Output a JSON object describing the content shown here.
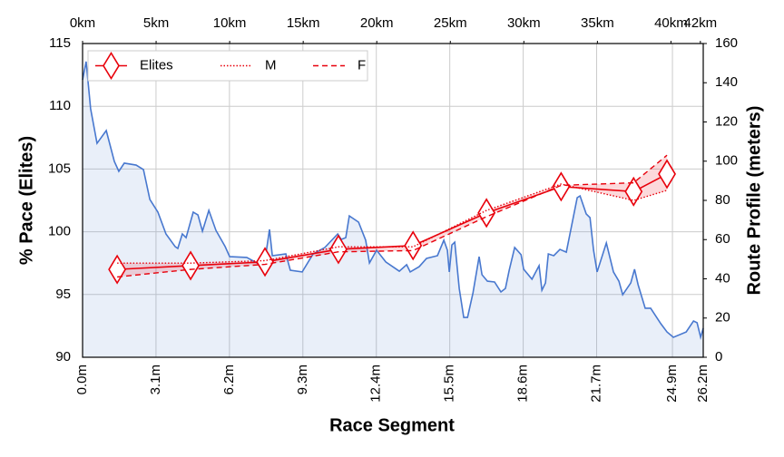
{
  "chart_data": {
    "type": "line",
    "xlabel": "Race Segment",
    "ylabel": "% Pace (Elites)",
    "y2label": "Route Profile (meters)",
    "xlim": [
      0,
      26.2
    ],
    "xticks": [
      {
        "value": 0,
        "label": "0.0m"
      },
      {
        "value": 3.1,
        "label": "3.1m"
      },
      {
        "value": 6.2,
        "label": "6.2m"
      },
      {
        "value": 9.3,
        "label": "9.3m"
      },
      {
        "value": 12.4,
        "label": "12.4m"
      },
      {
        "value": 15.5,
        "label": "15.5m"
      },
      {
        "value": 18.6,
        "label": "18.6m"
      },
      {
        "value": 21.7,
        "label": "21.7m"
      },
      {
        "value": 24.9,
        "label": "24.9m"
      },
      {
        "value": 26.2,
        "label": "26.2m"
      }
    ],
    "x2lim": [
      0,
      42.195
    ],
    "x2ticks": [
      {
        "value": 0,
        "label": "0km"
      },
      {
        "value": 5,
        "label": "5km"
      },
      {
        "value": 10,
        "label": "10km"
      },
      {
        "value": 15,
        "label": "15km"
      },
      {
        "value": 20,
        "label": "20km"
      },
      {
        "value": 25,
        "label": "25km"
      },
      {
        "value": 30,
        "label": "30km"
      },
      {
        "value": 35,
        "label": "35km"
      },
      {
        "value": 40,
        "label": "40km"
      },
      {
        "value": 42,
        "label": "42km"
      }
    ],
    "ylim": [
      90,
      115
    ],
    "yticks": [
      90,
      95,
      100,
      105,
      110,
      115
    ],
    "y2lim": [
      0,
      160
    ],
    "y2ticks": [
      0,
      20,
      40,
      60,
      80,
      100,
      120,
      140,
      160
    ],
    "grid": true,
    "legend": "upper left",
    "band": [
      1,
      2
    ],
    "series": [
      {
        "name": "Elites",
        "color": "#e8000b",
        "style": "solid",
        "marker": "diamond",
        "x": [
          1.46,
          4.56,
          7.7,
          10.8,
          13.95,
          17.05,
          20.2,
          23.26,
          24.67
        ],
        "values": [
          97.0,
          97.3,
          97.6,
          98.6,
          98.9,
          101.5,
          103.6,
          103.2,
          104.6
        ]
      },
      {
        "name": "M",
        "color": "#e8000b",
        "style": "dotted",
        "x": [
          1.46,
          4.56,
          7.7,
          10.8,
          13.95,
          17.05,
          20.2,
          23.26,
          24.67
        ],
        "values": [
          97.5,
          97.5,
          97.7,
          98.8,
          98.8,
          101.7,
          103.8,
          102.5,
          103.3
        ]
      },
      {
        "name": "F",
        "color": "#e8000b",
        "style": "dashed",
        "x": [
          1.46,
          4.56,
          7.7,
          10.8,
          13.95,
          17.05,
          20.2,
          23.26,
          24.67
        ],
        "values": [
          96.4,
          97.0,
          97.4,
          98.4,
          98.5,
          101.2,
          103.7,
          103.9,
          106.1
        ]
      },
      {
        "color": "#4878cf",
        "style": "area",
        "axis": "y2",
        "x": [
          0,
          0.15,
          0.34,
          0.61,
          1.0,
          1.34,
          1.53,
          1.76,
          2.26,
          2.57,
          2.84,
          3.18,
          3.52,
          3.91,
          4.02,
          4.21,
          4.37,
          4.67,
          4.87,
          5.06,
          5.33,
          5.63,
          6.02,
          6.21,
          6.93,
          7.36,
          7.74,
          7.89,
          8.01,
          8.58,
          8.77,
          9.27,
          9.73,
          10.23,
          10.77,
          10.92,
          11.11,
          11.26,
          11.65,
          11.95,
          12.11,
          12.41,
          12.8,
          13.37,
          13.68,
          13.83,
          14.21,
          14.52,
          14.98,
          15.25,
          15.4,
          15.48,
          15.59,
          15.71,
          15.9,
          16.09,
          16.25,
          16.48,
          16.74,
          16.86,
          17.09,
          17.39,
          17.66,
          17.85,
          18.01,
          18.24,
          18.51,
          18.62,
          18.97,
          19.27,
          19.39,
          19.54,
          19.66,
          19.89,
          20.15,
          20.42,
          20.65,
          20.88,
          21.0,
          21.26,
          21.42,
          21.57,
          21.72,
          22.11,
          22.41,
          22.64,
          22.8,
          23.14,
          23.3,
          23.45,
          23.75,
          23.98,
          24.41,
          24.67,
          24.94,
          25.48,
          25.79,
          25.94,
          26.09,
          26.2
        ],
        "values": [
          141.5,
          150.8,
          126.7,
          109.1,
          115.6,
          99.9,
          94.8,
          99.0,
          98.0,
          95.7,
          80.5,
          74.0,
          62.9,
          56.4,
          55.5,
          62.9,
          61.0,
          74.0,
          72.6,
          64.3,
          74.9,
          64.7,
          56.4,
          51.3,
          50.9,
          48.1,
          52.7,
          65.2,
          51.8,
          52.7,
          44.4,
          43.5,
          52.7,
          56.0,
          62.9,
          60.1,
          61.0,
          72.1,
          68.9,
          59.7,
          48.1,
          54.6,
          48.6,
          43.9,
          47.2,
          43.5,
          46.2,
          50.4,
          51.8,
          59.7,
          54.6,
          43.5,
          57.3,
          58.7,
          35.1,
          20.3,
          20.3,
          32.8,
          51.3,
          42.1,
          38.8,
          38.4,
          33.3,
          35.1,
          44.4,
          56.0,
          52.3,
          44.9,
          39.8,
          46.7,
          34.2,
          37.9,
          52.7,
          51.8,
          55.0,
          53.6,
          67.5,
          81.4,
          82.3,
          73.1,
          71.2,
          54.6,
          43.5,
          58.3,
          43.5,
          38.8,
          31.9,
          37.9,
          44.9,
          37.0,
          25.0,
          25.0,
          17.1,
          12.9,
          10.2,
          12.9,
          18.5,
          17.6,
          10.2,
          14.8
        ]
      }
    ]
  }
}
